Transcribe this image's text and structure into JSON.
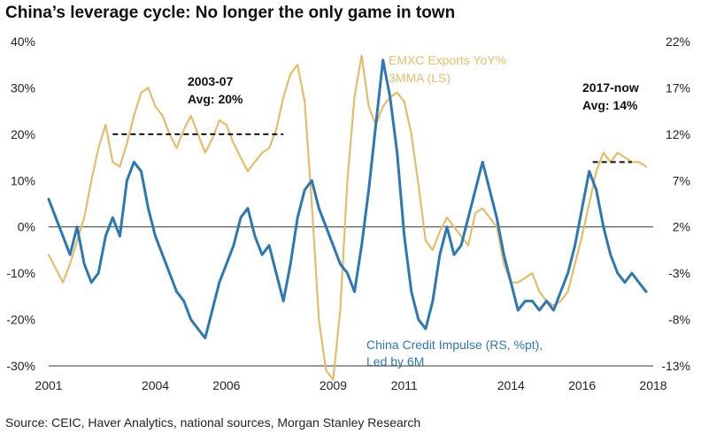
{
  "chart_data": {
    "type": "line",
    "title": "China’s leverage cycle: No longer the only game in town",
    "source": "Source: CEIC, Haver Analytics, national sources, Morgan Stanley Research",
    "x_range": [
      2001.0,
      2018.0
    ],
    "x_ticks": [
      {
        "value": 2001,
        "label": "2001"
      },
      {
        "value": 2004,
        "label": "2004"
      },
      {
        "value": 2006,
        "label": "2006"
      },
      {
        "value": 2009,
        "label": "2009"
      },
      {
        "value": 2011,
        "label": "2011"
      },
      {
        "value": 2014,
        "label": "2014"
      },
      {
        "value": 2016,
        "label": "2016"
      },
      {
        "value": 2018,
        "label": "2018"
      }
    ],
    "left_axis": {
      "range": [
        -30,
        40
      ],
      "ticks": [
        {
          "value": 40,
          "label": "40%"
        },
        {
          "value": 30,
          "label": "30%"
        },
        {
          "value": 20,
          "label": "20%"
        },
        {
          "value": 10,
          "label": "10%"
        },
        {
          "value": 0,
          "label": "0%"
        },
        {
          "value": -10,
          "label": "-10%"
        },
        {
          "value": -20,
          "label": "-20%"
        },
        {
          "value": -30,
          "label": "-30%"
        }
      ]
    },
    "right_axis": {
      "range": [
        -13,
        22
      ],
      "ticks": [
        {
          "value": 22,
          "label": "22%"
        },
        {
          "value": 17,
          "label": "17%"
        },
        {
          "value": 12,
          "label": "12%"
        },
        {
          "value": 7,
          "label": "7%"
        },
        {
          "value": 2,
          "label": "2%"
        },
        {
          "value": -3,
          "label": "-3%"
        },
        {
          "value": -8,
          "label": "-8%"
        },
        {
          "value": -13,
          "label": "-13%"
        }
      ]
    },
    "series": [
      {
        "name": "EMXC Exports YoY% 3MMA (LS)",
        "axis": "left",
        "color": "#E5BD6A",
        "x": [
          2001.0,
          2001.2,
          2001.4,
          2001.6,
          2001.8,
          2002.0,
          2002.2,
          2002.4,
          2002.6,
          2002.8,
          2003.0,
          2003.2,
          2003.4,
          2003.6,
          2003.8,
          2004.0,
          2004.2,
          2004.4,
          2004.6,
          2004.8,
          2005.0,
          2005.2,
          2005.4,
          2005.6,
          2005.8,
          2006.0,
          2006.2,
          2006.4,
          2006.6,
          2006.8,
          2007.0,
          2007.2,
          2007.4,
          2007.6,
          2007.8,
          2008.0,
          2008.2,
          2008.4,
          2008.6,
          2008.8,
          2009.0,
          2009.2,
          2009.4,
          2009.6,
          2009.8,
          2010.0,
          2010.2,
          2010.4,
          2010.6,
          2010.8,
          2011.0,
          2011.2,
          2011.4,
          2011.6,
          2011.8,
          2012.0,
          2012.2,
          2012.4,
          2012.6,
          2012.8,
          2013.0,
          2013.2,
          2013.4,
          2013.6,
          2013.8,
          2014.0,
          2014.2,
          2014.4,
          2014.6,
          2014.8,
          2015.0,
          2015.2,
          2015.4,
          2015.6,
          2015.8,
          2016.0,
          2016.2,
          2016.4,
          2016.6,
          2016.8,
          2017.0,
          2017.2,
          2017.4,
          2017.6,
          2017.8
        ],
        "y": [
          -6,
          -9,
          -12,
          -8,
          -3,
          2,
          10,
          17,
          22,
          14,
          13,
          18,
          24,
          29,
          30,
          26,
          24,
          20,
          17,
          21,
          24,
          20,
          16,
          19,
          23,
          22,
          18,
          15,
          12,
          14,
          16,
          17,
          21,
          28,
          33,
          35,
          27,
          5,
          -20,
          -31,
          -33,
          -18,
          10,
          28,
          37,
          26,
          22,
          26,
          28,
          29,
          27,
          20,
          9,
          -3,
          -5,
          -1,
          2,
          0,
          -2,
          -4,
          3,
          4,
          2,
          0,
          -8,
          -12,
          -12,
          -11,
          -10,
          -14,
          -16,
          -17,
          -16,
          -14,
          -8,
          -2,
          5,
          12,
          16,
          14,
          16,
          15,
          14,
          14,
          13
        ]
      },
      {
        "name": "China Credit Impulse (RS, %pt), Led by 6M",
        "axis": "right",
        "color": "#2E78B2",
        "x": [
          2001.0,
          2001.2,
          2001.4,
          2001.6,
          2001.8,
          2002.0,
          2002.2,
          2002.4,
          2002.6,
          2002.8,
          2003.0,
          2003.2,
          2003.4,
          2003.6,
          2003.8,
          2004.0,
          2004.2,
          2004.4,
          2004.6,
          2004.8,
          2005.0,
          2005.2,
          2005.4,
          2005.6,
          2005.8,
          2006.0,
          2006.2,
          2006.4,
          2006.6,
          2006.8,
          2007.0,
          2007.2,
          2007.4,
          2007.6,
          2007.8,
          2008.0,
          2008.2,
          2008.4,
          2008.6,
          2008.8,
          2009.0,
          2009.2,
          2009.4,
          2009.6,
          2009.8,
          2010.0,
          2010.2,
          2010.4,
          2010.6,
          2010.8,
          2011.0,
          2011.2,
          2011.4,
          2011.6,
          2011.8,
          2012.0,
          2012.2,
          2012.4,
          2012.6,
          2012.8,
          2013.0,
          2013.2,
          2013.4,
          2013.6,
          2013.8,
          2014.0,
          2014.2,
          2014.4,
          2014.6,
          2014.8,
          2015.0,
          2015.2,
          2015.4,
          2015.6,
          2015.8,
          2016.0,
          2016.2,
          2016.4,
          2016.6,
          2016.8,
          2017.0,
          2017.2,
          2017.4,
          2017.6,
          2017.8
        ],
        "y": [
          5,
          3,
          1,
          -1,
          2,
          -2,
          -4,
          -3,
          1,
          3,
          1,
          7,
          9,
          8,
          4,
          1,
          -1,
          -3,
          -5,
          -6,
          -8,
          -9,
          -10,
          -7,
          -4,
          -2,
          0,
          3,
          4,
          1,
          -1,
          0,
          -3,
          -6,
          -2,
          3,
          6,
          7,
          4,
          2,
          0,
          -2,
          -3,
          -5,
          0,
          6,
          13,
          20,
          16,
          10,
          1,
          -5,
          -8,
          -9,
          -6,
          -1,
          2,
          -1,
          0,
          3,
          6,
          9,
          6,
          3,
          -1,
          -4,
          -7,
          -6,
          -6,
          -7,
          -6,
          -7,
          -5,
          -3,
          0,
          4,
          8,
          6,
          2,
          -1,
          -3,
          -4,
          -3,
          -4,
          -5
        ]
      }
    ],
    "annotations": [
      {
        "lines": [
          "2003-07",
          "Avg: 20%"
        ],
        "style": "dark"
      },
      {
        "lines": [
          "2017-now",
          "Avg: 14%"
        ],
        "style": "dark"
      },
      {
        "lines": [
          "EMXC Exports YoY%",
          "3MMA (LS)"
        ],
        "style": "gold"
      },
      {
        "lines": [
          "China Credit Impulse (RS, %pt),",
          "Led by 6M"
        ],
        "style": "blue"
      }
    ],
    "avg_lines": [
      {
        "label": "2003-07 average",
        "x_start": 2002.8,
        "x_end": 2007.6,
        "value": 20
      },
      {
        "label": "2017-now average",
        "x_start": 2016.3,
        "x_end": 2017.4,
        "value": 14
      }
    ]
  }
}
